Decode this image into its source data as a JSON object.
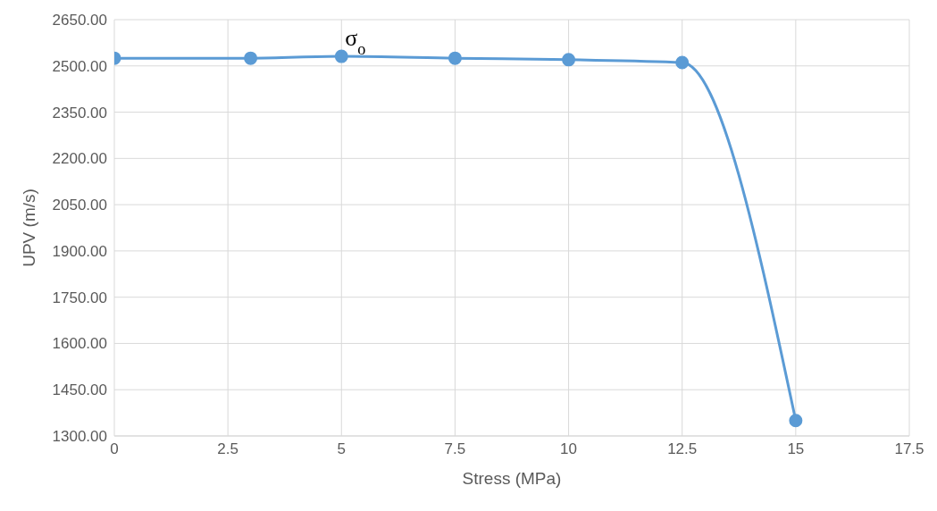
{
  "chart_data": {
    "type": "line",
    "xlabel": "Stress (MPa)",
    "ylabel": "UPV (m/s)",
    "x": [
      0,
      3,
      5,
      7.5,
      10,
      12.5,
      15
    ],
    "series": [
      {
        "color": "#5b9bd5",
        "values": [
          2525,
          2525,
          2531,
          2525,
          2520,
          2511,
          1350
        ]
      }
    ],
    "xlim": [
      0,
      17.5
    ],
    "xticks": [
      0,
      2.5,
      5,
      7.5,
      10,
      12.5,
      15,
      17.5
    ],
    "ylim": [
      1300,
      2650
    ],
    "yticks": [
      {
        "value": 1300,
        "label": "1300.00"
      },
      {
        "value": 1450,
        "label": "1450.00"
      },
      {
        "value": 1600,
        "label": "1600.00"
      },
      {
        "value": 1750,
        "label": "1750.00"
      },
      {
        "value": 1900,
        "label": "1900.00"
      },
      {
        "value": 2050,
        "label": "2050.00"
      },
      {
        "value": 2200,
        "label": "2200.00"
      },
      {
        "value": 2350,
        "label": "2350.00"
      },
      {
        "value": 2500,
        "label": "2500.00"
      },
      {
        "value": 2650,
        "label": "2650.00"
      }
    ],
    "grid": true,
    "marker": "circle",
    "line_style": "solid",
    "annotations": [
      {
        "text": "σ$_{o}$",
        "x": 5,
        "y": 2531
      }
    ]
  }
}
